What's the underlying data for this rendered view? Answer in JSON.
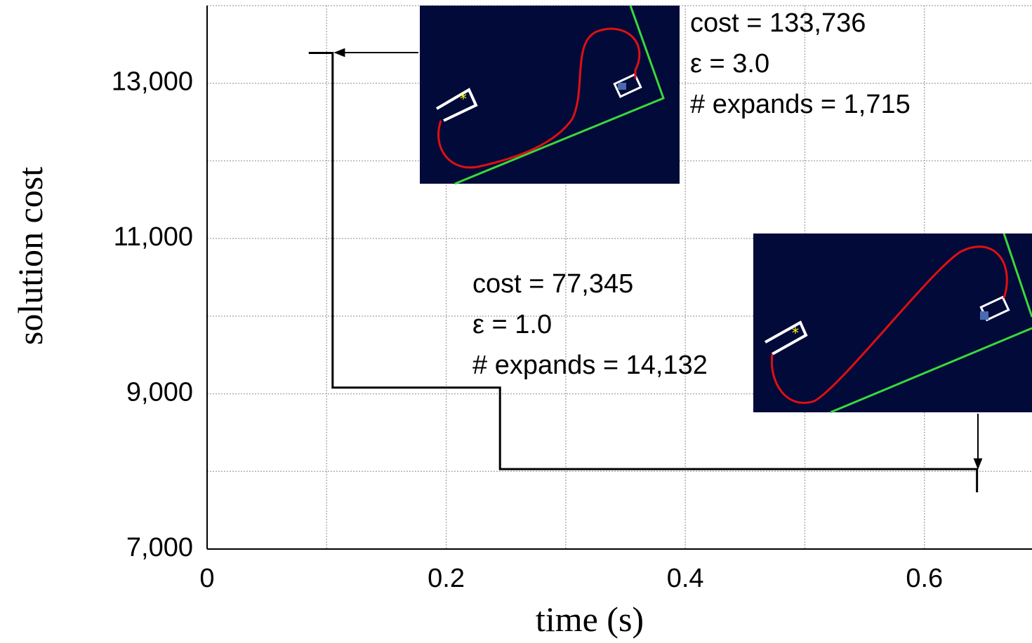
{
  "chart_data": {
    "type": "step-line",
    "x_label": "time (s)",
    "y_label": "solution cost",
    "xlim": [
      0,
      0.69
    ],
    "ylim": [
      7000,
      14000
    ],
    "xticks": [
      0,
      0.2,
      0.4,
      0.6
    ],
    "x_minor_grid": [
      0.1,
      0.3,
      0.5
    ],
    "yticks": [
      {
        "value": 7000,
        "label": "7,000"
      },
      {
        "value": 9000,
        "label": "9,000"
      },
      {
        "value": 11000,
        "label": "11,000"
      },
      {
        "value": 13000,
        "label": "13,000"
      }
    ],
    "y_minor_grid": [
      8000,
      10000,
      12000,
      14000
    ],
    "grid": true,
    "series": [
      {
        "color": "#000000",
        "x": [
          0.085,
          0.105,
          0.105,
          0.245,
          0.245,
          0.644,
          0.644
        ],
        "values": [
          13390,
          13390,
          9080,
          9080,
          8030,
          8030,
          7730
        ]
      }
    ],
    "annotations": [
      {
        "lines": [
          "cost = 133,736",
          "ε = 3.0",
          "# expands = 1,715"
        ]
      },
      {
        "lines": [
          "cost = 77,345",
          "ε = 1.0",
          "# expands = 14,132"
        ]
      }
    ]
  }
}
